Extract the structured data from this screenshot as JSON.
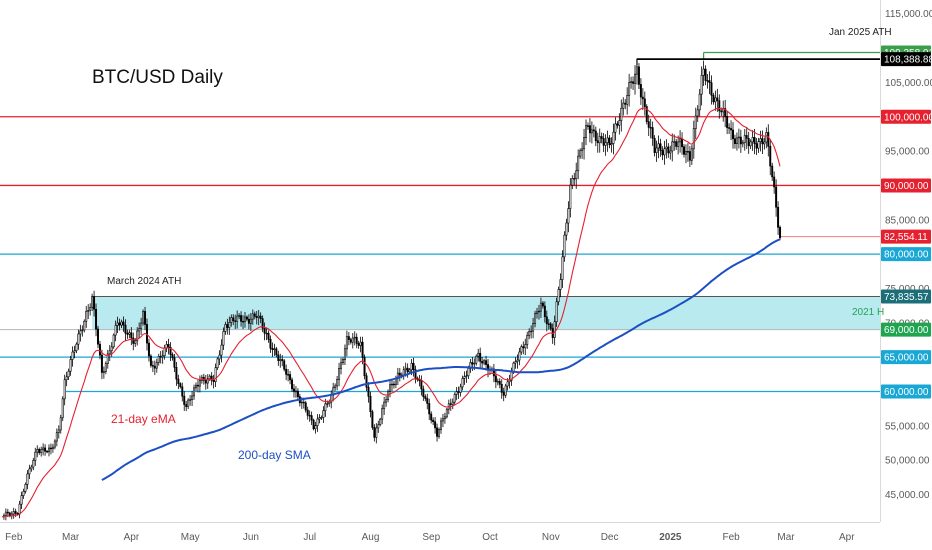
{
  "chart_data": {
    "type": "candlestick",
    "title": "BTC/USD Daily",
    "ylim": [
      41000,
      117000
    ],
    "x_start": "2024-01-27",
    "x_end": "2025-04-20",
    "y_ticks": [
      {
        "value": 115000,
        "label": "115,000.00"
      },
      {
        "value": 105000,
        "label": "105,000.00"
      },
      {
        "value": 95000,
        "label": "95,000.00"
      },
      {
        "value": 85000,
        "label": "85,000.00"
      },
      {
        "value": 75000,
        "label": "75,000.00"
      },
      {
        "value": 70000,
        "label": "70,000.00"
      },
      {
        "value": 55000,
        "label": "55,000.00"
      },
      {
        "value": 50000,
        "label": "50,000.00"
      },
      {
        "value": 45000,
        "label": "45,000.00"
      }
    ],
    "x_ticks": [
      {
        "date": "2024-02-01",
        "label": "Feb"
      },
      {
        "date": "2024-03-01",
        "label": "Mar"
      },
      {
        "date": "2024-04-01",
        "label": "Apr"
      },
      {
        "date": "2024-05-01",
        "label": "May"
      },
      {
        "date": "2024-06-01",
        "label": "Jun"
      },
      {
        "date": "2024-07-01",
        "label": "Jul"
      },
      {
        "date": "2024-08-01",
        "label": "Aug"
      },
      {
        "date": "2024-09-01",
        "label": "Sep"
      },
      {
        "date": "2024-10-01",
        "label": "Oct"
      },
      {
        "date": "2024-11-01",
        "label": "Nov"
      },
      {
        "date": "2024-12-01",
        "label": "Dec"
      },
      {
        "date": "2025-01-01",
        "label": "2025"
      },
      {
        "date": "2025-02-01",
        "label": "Feb"
      },
      {
        "date": "2025-03-01",
        "label": "Mar"
      },
      {
        "date": "2025-04-01",
        "label": "Apr"
      }
    ],
    "horizontal_levels": [
      {
        "value": 100000,
        "label": "100,000.00",
        "color": "#e5202f"
      },
      {
        "value": 90000,
        "label": "90,000.00",
        "color": "#e5202f"
      },
      {
        "value": 80000,
        "label": "80,000.00",
        "color": "#19a7d6"
      },
      {
        "value": 65000,
        "label": "65,000.00",
        "color": "#19a7d6"
      },
      {
        "value": 60000,
        "label": "60,000.00",
        "color": "#19a7d6"
      }
    ],
    "zone": {
      "low": 69000,
      "high": 73835.57,
      "start": "2024-03-14",
      "color": "#7fd8e4"
    },
    "badges": [
      {
        "value": 109358.01,
        "label": "109,358.01",
        "bg": "#3e9d4b",
        "fg": "#ffffff"
      },
      {
        "value": 108388.88,
        "label": "108,388.88",
        "bg": "#000000",
        "fg": "#ffffff"
      },
      {
        "value": 82554.11,
        "label": "82,554.11",
        "bg": "#e5202f",
        "fg": "#ffffff"
      },
      {
        "value": 73835.57,
        "label": "73,835.57",
        "bg": "#1c6f79",
        "fg": "#ffffff"
      },
      {
        "value": 69000,
        "label": "69,000.00",
        "bg": "#1fa550",
        "fg": "#ffffff"
      }
    ],
    "annotations": [
      {
        "text": "Jan 2025 ATH",
        "color": "#222222"
      },
      {
        "text": "March 2024 ATH",
        "color": "#222222"
      },
      {
        "text": "2021 H",
        "color": "#1fa550"
      },
      {
        "text": "21-day eMA",
        "color": "#e5202f"
      },
      {
        "text": "200-day SMA",
        "color": "#1c4fc4"
      }
    ],
    "ath_lines": [
      {
        "value": 109358.01,
        "start": "2025-01-20",
        "color": "#3e9d4b"
      },
      {
        "value": 108388.88,
        "start": "2024-12-17",
        "color": "#000000"
      }
    ],
    "anchors": [
      {
        "date": "2024-01-28",
        "close": 41800
      },
      {
        "date": "2024-02-05",
        "close": 42600
      },
      {
        "date": "2024-02-10",
        "close": 47500
      },
      {
        "date": "2024-02-15",
        "close": 51800
      },
      {
        "date": "2024-02-22",
        "close": 51200
      },
      {
        "date": "2024-02-26",
        "close": 54500
      },
      {
        "date": "2024-02-29",
        "close": 61500
      },
      {
        "date": "2024-03-05",
        "close": 66000
      },
      {
        "date": "2024-03-11",
        "close": 71500
      },
      {
        "date": "2024-03-14",
        "close": 73500
      },
      {
        "date": "2024-03-19",
        "close": 62500
      },
      {
        "date": "2024-03-27",
        "close": 70000
      },
      {
        "date": "2024-04-05",
        "close": 67500
      },
      {
        "date": "2024-04-09",
        "close": 71000
      },
      {
        "date": "2024-04-13",
        "close": 63500
      },
      {
        "date": "2024-04-22",
        "close": 66500
      },
      {
        "date": "2024-05-01",
        "close": 57500
      },
      {
        "date": "2024-05-08",
        "close": 62000
      },
      {
        "date": "2024-05-15",
        "close": 61500
      },
      {
        "date": "2024-05-21",
        "close": 70000
      },
      {
        "date": "2024-06-06",
        "close": 71000
      },
      {
        "date": "2024-06-14",
        "close": 66500
      },
      {
        "date": "2024-06-24",
        "close": 61000
      },
      {
        "date": "2024-07-05",
        "close": 55000
      },
      {
        "date": "2024-07-14",
        "close": 59000
      },
      {
        "date": "2024-07-22",
        "close": 67500
      },
      {
        "date": "2024-07-29",
        "close": 67000
      },
      {
        "date": "2024-08-05",
        "close": 53000
      },
      {
        "date": "2024-08-12",
        "close": 60500
      },
      {
        "date": "2024-08-24",
        "close": 64000
      },
      {
        "date": "2024-09-06",
        "close": 54000
      },
      {
        "date": "2024-09-15",
        "close": 59500
      },
      {
        "date": "2024-09-27",
        "close": 65500
      },
      {
        "date": "2024-10-10",
        "close": 60000
      },
      {
        "date": "2024-10-21",
        "close": 67500
      },
      {
        "date": "2024-10-29",
        "close": 72500
      },
      {
        "date": "2024-11-04",
        "close": 68500
      },
      {
        "date": "2024-11-08",
        "close": 76500
      },
      {
        "date": "2024-11-13",
        "close": 90000
      },
      {
        "date": "2024-11-22",
        "close": 98500
      },
      {
        "date": "2024-12-03",
        "close": 95500
      },
      {
        "date": "2024-12-08",
        "close": 100500
      },
      {
        "date": "2024-12-17",
        "close": 106500
      },
      {
        "date": "2024-12-26",
        "close": 95000
      },
      {
        "date": "2025-01-07",
        "close": 96000
      },
      {
        "date": "2025-01-13",
        "close": 94500
      },
      {
        "date": "2025-01-20",
        "close": 106500
      },
      {
        "date": "2025-01-27",
        "close": 102000
      },
      {
        "date": "2025-02-03",
        "close": 97500
      },
      {
        "date": "2025-02-12",
        "close": 96000
      },
      {
        "date": "2025-02-21",
        "close": 97000
      },
      {
        "date": "2025-02-24",
        "close": 91000
      },
      {
        "date": "2025-02-28",
        "close": 82554
      }
    ]
  }
}
